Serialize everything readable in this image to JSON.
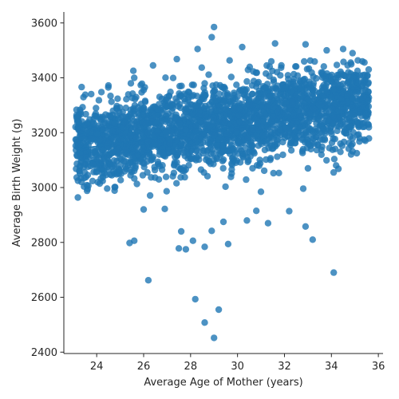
{
  "chart_data": {
    "type": "scatter",
    "xlabel": "Average Age of Mother (years)",
    "ylabel": "Average Birth Weight (g)",
    "xlim": [
      22.6,
      36.2
    ],
    "ylim": [
      2395,
      3640
    ],
    "xticks": [
      24,
      26,
      28,
      30,
      32,
      34,
      36
    ],
    "yticks": [
      2400,
      2600,
      2800,
      3000,
      3200,
      3400,
      3600
    ],
    "grid": false,
    "legend": "none",
    "color": "#1f77b4",
    "cloud": {
      "x_range": [
        23.1,
        35.6
      ],
      "trend_intercept_at_24": 3165,
      "trend_slope_per_year": 13,
      "spread_sd": 75,
      "point_count": 2600
    },
    "regression_line": {
      "x": [
        23.1,
        35.6
      ],
      "y": [
        3140,
        3285
      ]
    },
    "outliers": [
      {
        "x": 29.0,
        "y": 2452
      },
      {
        "x": 28.6,
        "y": 2508
      },
      {
        "x": 28.2,
        "y": 2593
      },
      {
        "x": 26.2,
        "y": 2662
      },
      {
        "x": 34.1,
        "y": 2690
      },
      {
        "x": 25.4,
        "y": 2798
      },
      {
        "x": 25.6,
        "y": 2806
      },
      {
        "x": 27.5,
        "y": 2778
      },
      {
        "x": 27.8,
        "y": 2775
      },
      {
        "x": 28.1,
        "y": 2806
      },
      {
        "x": 28.6,
        "y": 2784
      },
      {
        "x": 29.6,
        "y": 2794
      },
      {
        "x": 33.2,
        "y": 2810
      },
      {
        "x": 32.9,
        "y": 2858
      },
      {
        "x": 32.2,
        "y": 2914
      },
      {
        "x": 26.0,
        "y": 2920
      },
      {
        "x": 31.3,
        "y": 2870
      },
      {
        "x": 30.4,
        "y": 2880
      },
      {
        "x": 27.6,
        "y": 2840
      },
      {
        "x": 28.9,
        "y": 2842
      },
      {
        "x": 29.2,
        "y": 2555
      },
      {
        "x": 29.0,
        "y": 3585
      },
      {
        "x": 28.9,
        "y": 3548
      },
      {
        "x": 28.3,
        "y": 3505
      },
      {
        "x": 31.6,
        "y": 3525
      },
      {
        "x": 32.9,
        "y": 3522
      },
      {
        "x": 34.9,
        "y": 3490
      },
      {
        "x": 34.5,
        "y": 3505
      },
      {
        "x": 33.8,
        "y": 3500
      },
      {
        "x": 30.2,
        "y": 3512
      },
      {
        "x": 26.4,
        "y": 3445
      },
      {
        "x": 25.6,
        "y": 3400
      },
      {
        "x": 24.5,
        "y": 3372
      },
      {
        "x": 24.2,
        "y": 3348
      },
      {
        "x": 32.8,
        "y": 2996
      },
      {
        "x": 26.9,
        "y": 2922
      },
      {
        "x": 33.0,
        "y": 3070
      },
      {
        "x": 34.3,
        "y": 3068
      },
      {
        "x": 29.4,
        "y": 2875
      },
      {
        "x": 30.8,
        "y": 2915
      }
    ]
  }
}
